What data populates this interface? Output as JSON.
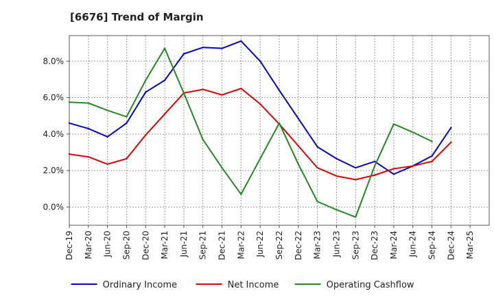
{
  "chart_data": {
    "type": "line",
    "title": "[6676]  Trend of Margin",
    "xlabel": "",
    "ylabel": "",
    "x": [
      "Dec-19",
      "Mar-20",
      "Jun-20",
      "Sep-20",
      "Dec-20",
      "Mar-21",
      "Jun-21",
      "Sep-21",
      "Dec-21",
      "Mar-22",
      "Jun-22",
      "Sep-22",
      "Dec-22",
      "Mar-23",
      "Jun-23",
      "Sep-23",
      "Dec-23",
      "Mar-24",
      "Jun-24",
      "Sep-24",
      "Dec-24",
      "Mar-25"
    ],
    "y_ticks": [
      "0.0%",
      "2.0%",
      "4.0%",
      "6.0%",
      "8.0%"
    ],
    "y_tick_values": [
      0,
      2,
      4,
      6,
      8
    ],
    "ylim": [
      -1.0,
      9.4
    ],
    "grid": true,
    "legend_position": "bottom",
    "series": [
      {
        "name": "Ordinary Income",
        "color": "#0000cc",
        "values": [
          4.6,
          4.3,
          3.85,
          4.6,
          6.3,
          6.95,
          8.4,
          8.75,
          8.7,
          9.1,
          8.0,
          6.4,
          4.85,
          3.3,
          2.65,
          2.15,
          2.5,
          1.8,
          2.25,
          2.8,
          4.35,
          null
        ]
      },
      {
        "name": "Net Income",
        "color": "#dd0000",
        "values": [
          2.9,
          2.75,
          2.35,
          2.65,
          3.95,
          5.1,
          6.25,
          6.45,
          6.15,
          6.5,
          5.65,
          4.55,
          3.35,
          2.15,
          1.7,
          1.5,
          1.75,
          2.1,
          2.25,
          2.5,
          3.55,
          null
        ]
      },
      {
        "name": "Operating Cashflow",
        "color": "#228822",
        "values": [
          5.75,
          5.7,
          5.3,
          4.95,
          6.95,
          8.7,
          6.25,
          3.7,
          2.15,
          0.7,
          2.65,
          4.6,
          2.35,
          0.3,
          -0.15,
          -0.55,
          2.25,
          4.55,
          4.1,
          3.6,
          null,
          null
        ]
      }
    ]
  }
}
